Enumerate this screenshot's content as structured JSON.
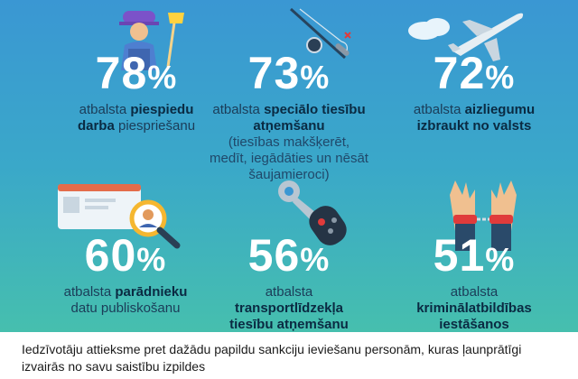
{
  "stats": [
    {
      "percent": "78",
      "sign": "%",
      "pre": "atbalsta ",
      "bold": "piespiedu darba",
      "post": " piespriešanu",
      "sub": "",
      "icon": "worker-icon"
    },
    {
      "percent": "73",
      "sign": "%",
      "pre": "atbalsta ",
      "bold": "speciālo tiesību atņemšanu",
      "post": "",
      "sub": "(tiesības makšķerēt, medīt, iegādāties un nēsāt šaujamieroci)",
      "icon": "fishing-rod-icon"
    },
    {
      "percent": "72",
      "sign": "%",
      "pre": "atbalsta ",
      "bold": "aizliegumu izbraukt no valsts",
      "post": "",
      "sub": "",
      "icon": "airplane-icon"
    },
    {
      "percent": "60",
      "sign": "%",
      "pre": "atbalsta ",
      "bold": "parādnieku",
      "post": " datu publiskošanu",
      "sub": "",
      "icon": "magnifier-profile-icon"
    },
    {
      "percent": "56",
      "sign": "%",
      "pre": "atbalsta ",
      "bold": "transportlīdzekļa tiesību atņemšanu",
      "post": "",
      "sub": "",
      "icon": "car-key-icon"
    },
    {
      "percent": "51",
      "sign": "%",
      "pre": "atbalsta ",
      "bold": "kriminālatbildības iestāšanos",
      "post": "",
      "sub": "",
      "icon": "handcuffs-icon"
    }
  ],
  "caption": "Iedzīvotāju attieksme pret dažādu papildu sankciju ieviešanu personām, kuras ļaunprātīgi izvairās no savu saistību izpildes",
  "colors": {
    "panel_top": "#3a97d3",
    "panel_bottom": "#46bfae",
    "percent": "#ffffff",
    "text": "#10324a"
  }
}
